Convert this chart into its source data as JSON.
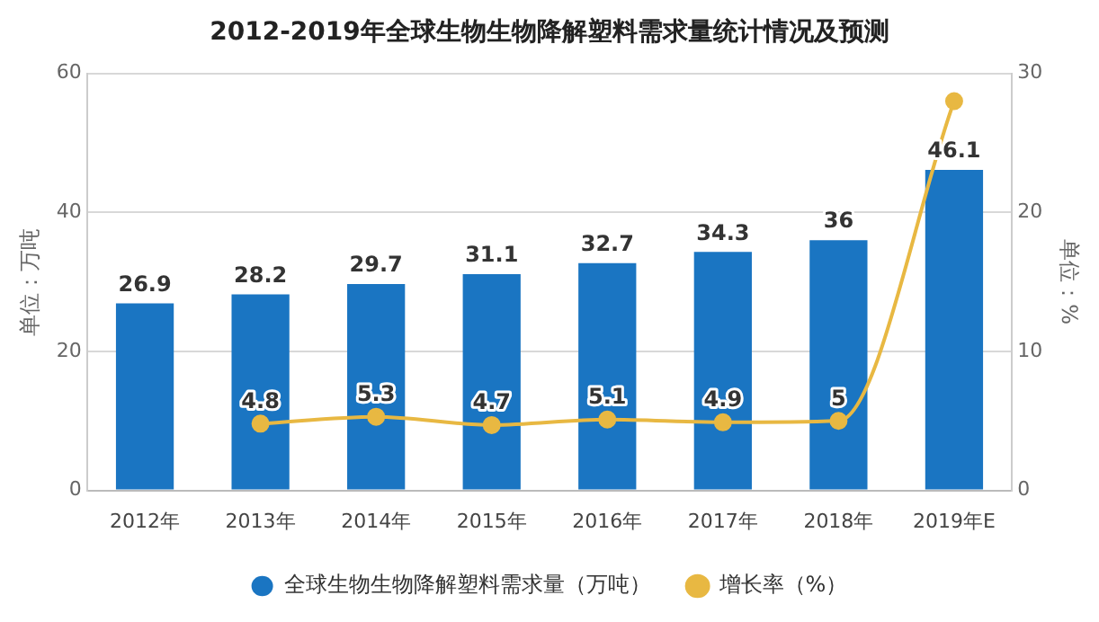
{
  "chart_data": {
    "type": "bar",
    "title": "2012-2019年全球生物生物降解塑料需求量统计情况及预测",
    "ylabel": "单位：万吨",
    "y2label": "单位：%",
    "categories": [
      "2012年",
      "2013年",
      "2014年",
      "2015年",
      "2016年",
      "2017年",
      "2018年",
      "2019年E"
    ],
    "series": [
      {
        "name": "全球生物生物降解塑料需求量（万吨）",
        "color": "#1a75c2",
        "values": [
          26.9,
          28.2,
          29.7,
          31.1,
          32.7,
          34.3,
          36,
          46.1
        ],
        "value_labels": [
          "26.9",
          "28.2",
          "29.7",
          "31.1",
          "32.7",
          "34.3",
          "36",
          "46.1"
        ]
      },
      {
        "name": "增长率（%）",
        "type": "line",
        "axis": "y2",
        "color": "#e8b842",
        "values": [
          null,
          4.8,
          5.3,
          4.7,
          5.1,
          4.9,
          5,
          28
        ],
        "value_labels": [
          null,
          "4.8",
          "5.3",
          "4.7",
          "5.1",
          "4.9",
          "5",
          null
        ]
      }
    ],
    "ylim": [
      0,
      60
    ],
    "yticks": [
      0,
      20,
      40,
      60
    ],
    "y2lim": [
      0,
      30
    ],
    "y2ticks": [
      0,
      10,
      20,
      30
    ],
    "grid": "y",
    "legend": "bottom",
    "marker": "circle",
    "line_style": "solid"
  }
}
